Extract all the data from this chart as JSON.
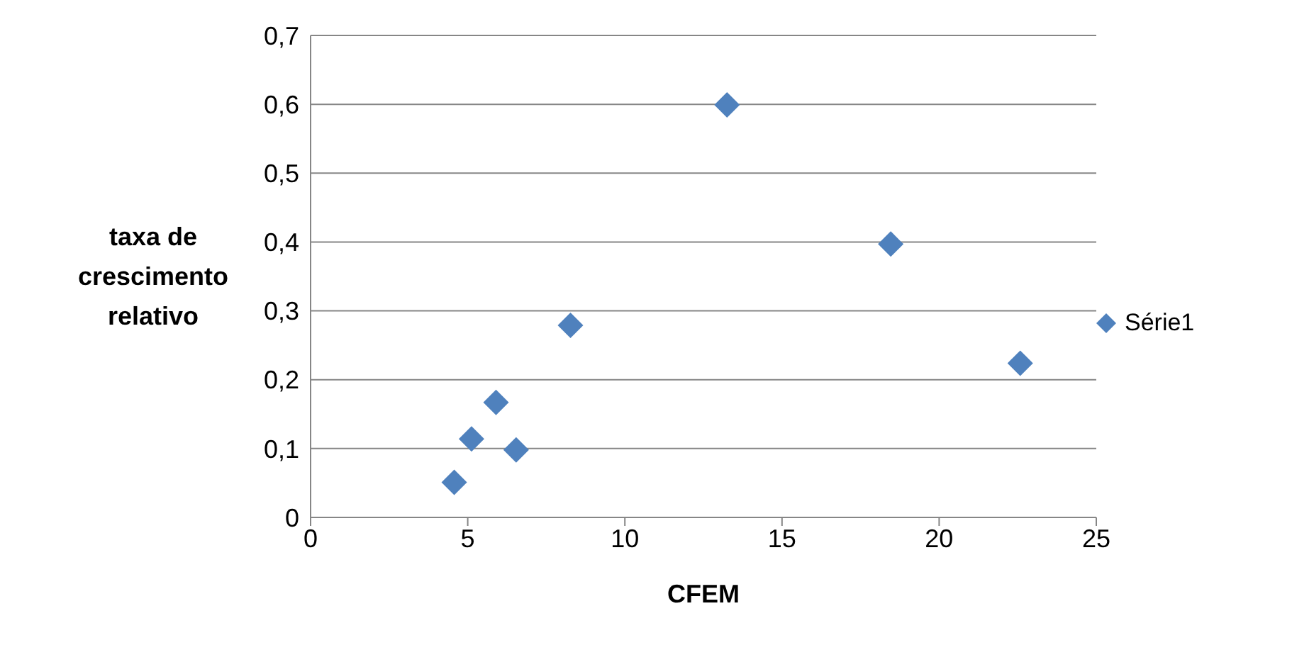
{
  "chart_data": {
    "type": "scatter",
    "xlabel": "CFEM",
    "ylabel": "taxa de crescimento relativo",
    "x": [
      4.57,
      5.12,
      5.9,
      6.54,
      8.27,
      13.25,
      18.46,
      22.58
    ],
    "series": [
      {
        "name": "Série1",
        "color": "#4f81bd",
        "values": [
          0.051,
          0.114,
          0.167,
          0.098,
          0.279,
          0.599,
          0.397,
          0.224
        ]
      }
    ],
    "xlim": [
      0,
      25
    ],
    "xticks": [
      0,
      5,
      10,
      15,
      20,
      25
    ],
    "ylim": [
      0,
      0.7
    ],
    "yticks": [
      {
        "value": 0,
        "label": "0"
      },
      {
        "value": 0.1,
        "label": "0,1"
      },
      {
        "value": 0.2,
        "label": "0,2"
      },
      {
        "value": 0.3,
        "label": "0,3"
      },
      {
        "value": 0.4,
        "label": "0,4"
      },
      {
        "value": 0.5,
        "label": "0,5"
      },
      {
        "value": 0.6,
        "label": "0,6"
      },
      {
        "value": 0.7,
        "label": "0,7"
      }
    ],
    "grid": "y",
    "legend": "right",
    "marker": "diamond"
  }
}
